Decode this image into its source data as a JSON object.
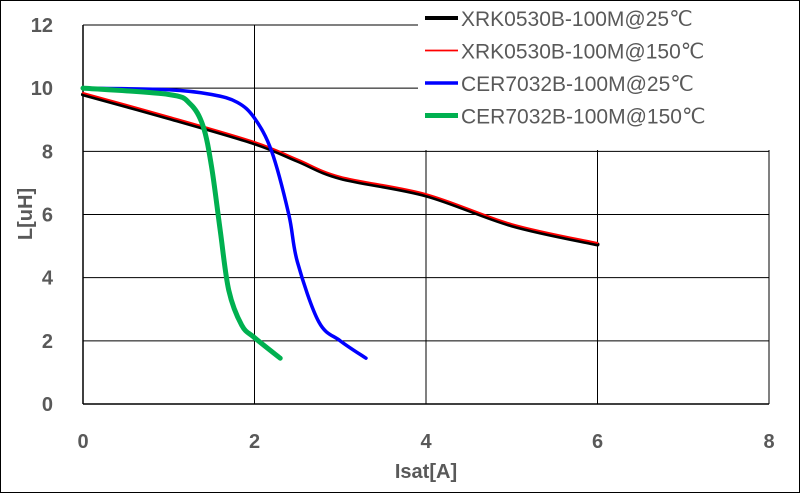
{
  "chart_data": {
    "type": "line",
    "title": "",
    "xlabel": "Isat[A]",
    "ylabel": "L[uH]",
    "xlim": [
      0,
      8
    ],
    "ylim": [
      0,
      12
    ],
    "xticks": [
      0,
      2,
      4,
      6,
      8
    ],
    "yticks": [
      0,
      2,
      4,
      6,
      8,
      10,
      12
    ],
    "grid": true,
    "legend_position": "top-right",
    "series": [
      {
        "name": "XRK0530B-100M@25℃",
        "color": "#000000",
        "x": [
          0,
          1,
          2,
          2.5,
          3,
          4,
          5,
          6
        ],
        "y": [
          9.8,
          9.05,
          8.25,
          7.7,
          7.15,
          6.6,
          5.65,
          5.05
        ]
      },
      {
        "name": "XRK0530B-100M@150℃",
        "color": "#ff0000",
        "x": [
          0,
          1,
          2,
          2.5,
          3,
          4,
          5,
          6
        ],
        "y": [
          9.85,
          9.1,
          8.3,
          7.75,
          7.2,
          6.65,
          5.7,
          5.1
        ]
      },
      {
        "name": "CER7032B-100M@25℃",
        "color": "#0000ff",
        "x": [
          0,
          1,
          1.5,
          1.8,
          2,
          2.2,
          2.4,
          2.5,
          2.75,
          3,
          3.3
        ],
        "y": [
          10,
          9.95,
          9.8,
          9.55,
          9.05,
          8.0,
          6.0,
          4.5,
          2.6,
          2.0,
          1.45
        ]
      },
      {
        "name": "CER7032B-100M@150℃",
        "color": "#00b050",
        "x": [
          0,
          1,
          1.25,
          1.4,
          1.5,
          1.6,
          1.7,
          1.85,
          2,
          2.3
        ],
        "y": [
          10,
          9.8,
          9.5,
          8.8,
          7.5,
          5.5,
          3.6,
          2.5,
          2.1,
          1.45
        ]
      }
    ]
  }
}
